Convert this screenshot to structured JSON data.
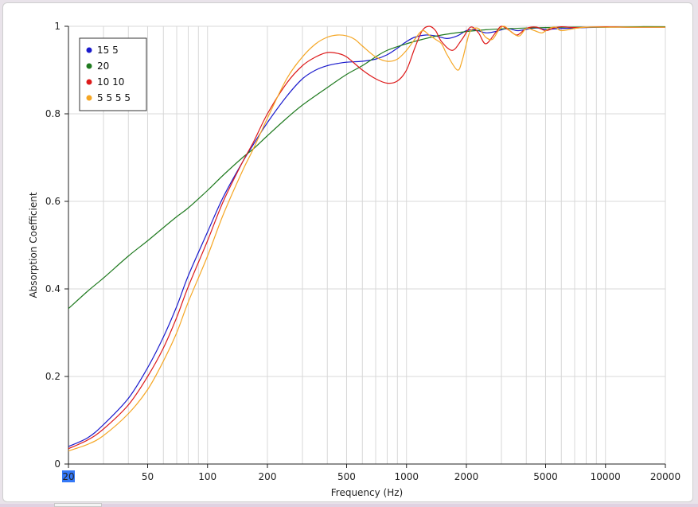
{
  "colors": {
    "grid": "#d8d8d8",
    "axis": "#222222",
    "highlight": "#3478f6"
  },
  "chart_data": {
    "type": "line",
    "x_scale": "log",
    "xlabel": "Frequency (Hz)",
    "ylabel": "Absorption Coefficient",
    "xlim": [
      20,
      20000
    ],
    "ylim": [
      0,
      1
    ],
    "grid": true,
    "legend_position": "top-left",
    "x_ticks": [
      20,
      50,
      100,
      200,
      500,
      1000,
      2000,
      5000,
      10000,
      20000
    ],
    "x_tick_labels": [
      "20",
      "50",
      "100",
      "200",
      "500",
      "1000",
      "2000",
      "5000",
      "10000",
      "20000"
    ],
    "y_ticks": [
      0,
      0.2,
      0.4,
      0.6,
      0.8,
      1
    ],
    "y_tick_labels": [
      "0",
      "0.2",
      "0.4",
      "0.6",
      "0.8",
      "1"
    ],
    "highlighted_tick": "20",
    "series": [
      {
        "name": "15 5",
        "color": "#1a1acc",
        "x": [
          20,
          25,
          30,
          40,
          50,
          60,
          70,
          80,
          100,
          120,
          150,
          170,
          200,
          250,
          300,
          350,
          400,
          450,
          500,
          600,
          700,
          800,
          900,
          1000,
          1100,
          1250,
          1400,
          1600,
          1800,
          2000,
          2200,
          2500,
          2800,
          3200,
          3600,
          4000,
          4500,
          5000,
          6000,
          7000,
          8000,
          10000,
          13000,
          20000
        ],
        "y": [
          0.04,
          0.06,
          0.09,
          0.15,
          0.22,
          0.29,
          0.36,
          0.43,
          0.53,
          0.61,
          0.69,
          0.73,
          0.78,
          0.84,
          0.88,
          0.9,
          0.91,
          0.915,
          0.918,
          0.92,
          0.925,
          0.935,
          0.95,
          0.965,
          0.975,
          0.98,
          0.978,
          0.972,
          0.978,
          0.99,
          0.992,
          0.985,
          0.988,
          0.995,
          0.99,
          0.993,
          0.996,
          0.993,
          0.995,
          0.996,
          0.997,
          0.998,
          0.998,
          0.998
        ]
      },
      {
        "name": "20",
        "color": "#1f7a1f",
        "x": [
          20,
          25,
          30,
          40,
          50,
          60,
          70,
          80,
          100,
          120,
          150,
          170,
          200,
          250,
          300,
          400,
          500,
          600,
          700,
          800,
          1000,
          1200,
          1500,
          2000,
          2500,
          3000,
          4000,
          5000,
          7000,
          10000,
          15000,
          20000
        ],
        "y": [
          0.355,
          0.395,
          0.425,
          0.475,
          0.51,
          0.54,
          0.565,
          0.585,
          0.625,
          0.66,
          0.7,
          0.72,
          0.75,
          0.79,
          0.82,
          0.86,
          0.89,
          0.91,
          0.93,
          0.945,
          0.96,
          0.97,
          0.98,
          0.988,
          0.992,
          0.994,
          0.996,
          0.997,
          0.998,
          0.998,
          0.999,
          0.999
        ]
      },
      {
        "name": "10 10",
        "color": "#dd1a1a",
        "x": [
          20,
          25,
          30,
          40,
          50,
          60,
          70,
          80,
          100,
          120,
          150,
          170,
          200,
          250,
          300,
          350,
          400,
          450,
          500,
          600,
          700,
          800,
          900,
          1000,
          1100,
          1200,
          1300,
          1400,
          1500,
          1700,
          1900,
          2100,
          2300,
          2500,
          2800,
          3000,
          3300,
          3600,
          4000,
          4500,
          5000,
          5500,
          6000,
          7000,
          8000,
          10000,
          13000,
          20000
        ],
        "y": [
          0.035,
          0.055,
          0.08,
          0.135,
          0.2,
          0.265,
          0.335,
          0.405,
          0.51,
          0.6,
          0.69,
          0.735,
          0.8,
          0.87,
          0.91,
          0.93,
          0.94,
          0.938,
          0.93,
          0.9,
          0.88,
          0.87,
          0.875,
          0.9,
          0.95,
          0.99,
          1.0,
          0.99,
          0.965,
          0.945,
          0.97,
          0.998,
          0.985,
          0.96,
          0.985,
          1.0,
          0.99,
          0.98,
          0.995,
          0.998,
          0.99,
          0.996,
          0.999,
          0.997,
          0.998,
          0.999,
          0.998,
          0.998
        ]
      },
      {
        "name": "5 5 5 5",
        "color": "#f5a623",
        "x": [
          20,
          25,
          30,
          40,
          50,
          60,
          70,
          80,
          100,
          120,
          150,
          170,
          200,
          250,
          300,
          350,
          400,
          450,
          500,
          550,
          600,
          700,
          800,
          900,
          1000,
          1100,
          1200,
          1300,
          1400,
          1500,
          1600,
          1800,
          1900,
          2000,
          2100,
          2300,
          2500,
          2700,
          2900,
          3100,
          3400,
          3700,
          4000,
          4400,
          4800,
          5200,
          5600,
          6000,
          7000,
          8000,
          10000,
          13000,
          20000
        ],
        "y": [
          0.03,
          0.045,
          0.065,
          0.115,
          0.17,
          0.235,
          0.3,
          0.37,
          0.475,
          0.57,
          0.67,
          0.72,
          0.79,
          0.88,
          0.93,
          0.96,
          0.975,
          0.98,
          0.978,
          0.97,
          0.955,
          0.93,
          0.92,
          0.925,
          0.945,
          0.97,
          0.99,
          0.98,
          0.97,
          0.96,
          0.935,
          0.9,
          0.92,
          0.96,
          0.99,
          0.995,
          0.975,
          0.97,
          0.99,
          1.0,
          0.985,
          0.978,
          0.995,
          0.99,
          0.985,
          0.995,
          0.998,
          0.99,
          0.995,
          0.998,
          0.998,
          0.998,
          0.998
        ]
      }
    ]
  }
}
